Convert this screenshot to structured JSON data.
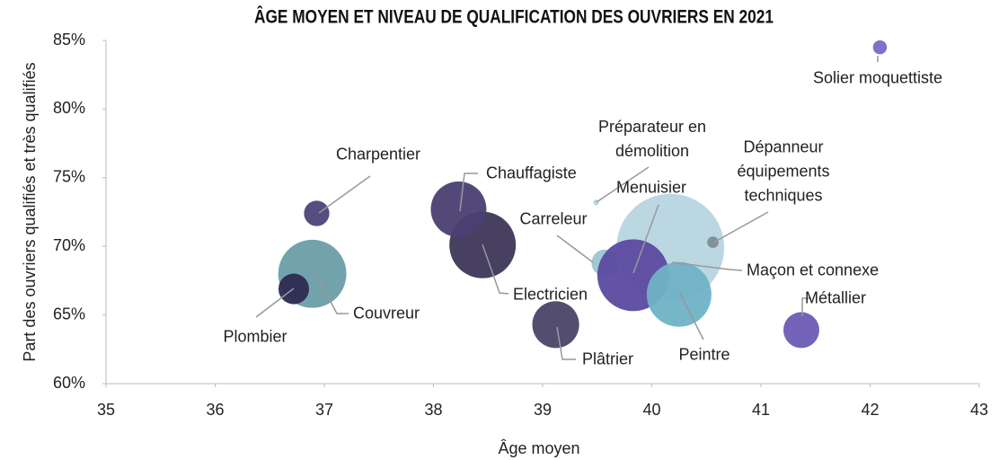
{
  "chart_data": {
    "type": "scatter",
    "title": "ÂGE MOYEN ET NIVEAU DE QUALIFICATION DES OUVRIERS EN 2021",
    "x_label": "Âge moyen",
    "y_label": "Part des ouvriers qualifiés et très qualifiés",
    "categories": [
      "Maçon et connexe",
      "Couvreur",
      "Plombier",
      "Electricien",
      "Chauffagiste",
      "Charpentier",
      "Plâtrier",
      "Préparateur en démolition",
      "Carreleur",
      "Menuisier",
      "Peintre",
      "Dépanneur équipements techniques",
      "Métallier",
      "Solier moquettiste"
    ],
    "x": [
      40.17,
      36.89,
      36.72,
      38.45,
      38.23,
      36.93,
      39.12,
      39.49,
      39.57,
      39.83,
      40.25,
      40.56,
      41.37,
      42.09
    ],
    "values": [
      69.9,
      68.0,
      66.9,
      70.1,
      72.7,
      72.4,
      64.3,
      73.2,
      68.8,
      67.9,
      66.5,
      70.3,
      63.9,
      84.5
    ],
    "sizes": [
      360,
      144,
      29,
      137,
      96,
      20,
      68,
      1,
      22,
      160,
      130,
      4,
      40,
      6
    ],
    "colors": [
      "#b7d5e0",
      "#6a9ea8",
      "#2c2b50",
      "#3d3658",
      "#4a3f72",
      "#4e4578",
      "#4a4468",
      "#b8d4de",
      "#9cc6d2",
      "#5b4aa0",
      "#6fb2c6",
      "#7f8c96",
      "#6b5bb5",
      "#7b68c8"
    ],
    "xlim": [
      35,
      43
    ],
    "xticks": [
      35,
      36,
      37,
      38,
      39,
      40,
      41,
      42,
      43
    ],
    "ylim": [
      60,
      85
    ],
    "yticks": [
      {
        "value": 60,
        "label": "60%"
      },
      {
        "value": 65,
        "label": "65%"
      },
      {
        "value": 70,
        "label": "70%"
      },
      {
        "value": 75,
        "label": "75%"
      },
      {
        "value": 80,
        "label": "80%"
      },
      {
        "value": 85,
        "label": "85%"
      }
    ]
  }
}
